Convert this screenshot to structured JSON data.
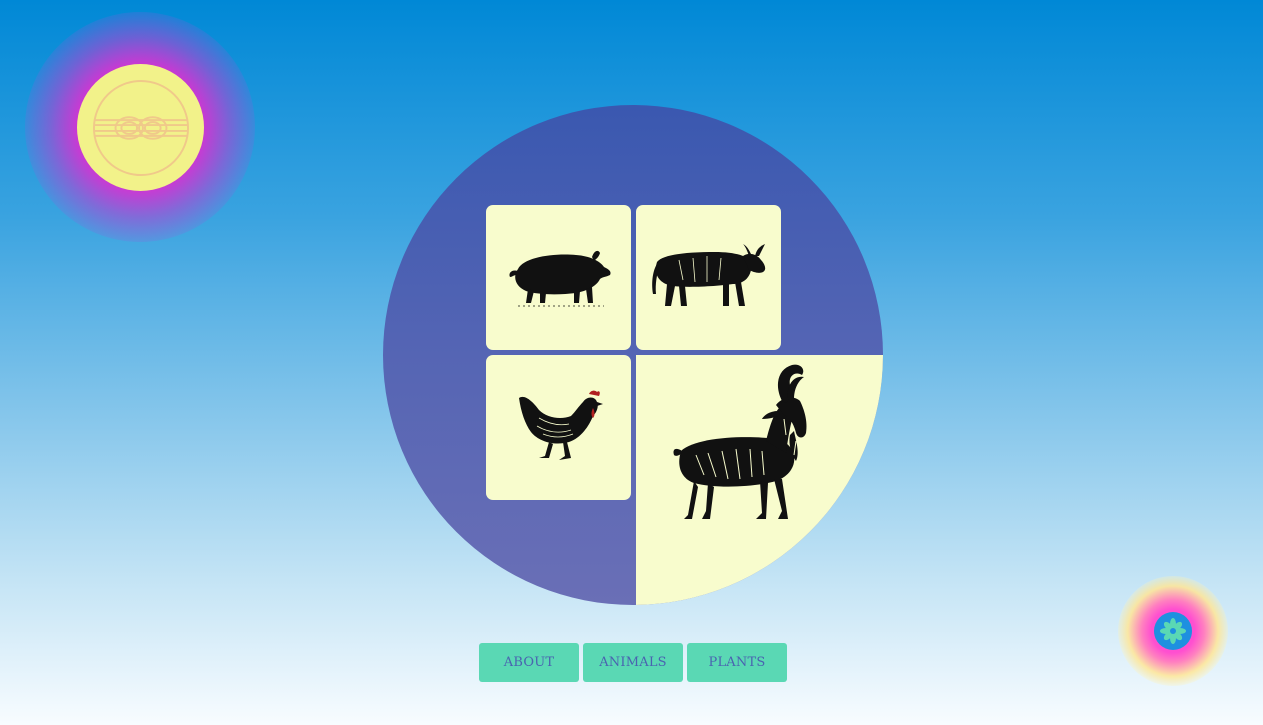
{
  "logo": {
    "icon": "knot-icon",
    "color": "#f2f28a",
    "glow": "#d632d2"
  },
  "badge": {
    "icon": "flower-icon",
    "color": "#1e90e0",
    "glow": "#ff4fd0"
  },
  "grid": {
    "tiles": [
      {
        "animal": "pig",
        "icon": "pig-icon"
      },
      {
        "animal": "cow",
        "icon": "cow-icon"
      },
      {
        "animal": "chicken",
        "icon": "chicken-icon"
      },
      {
        "animal": "goat",
        "icon": "goat-icon"
      }
    ],
    "tile_color": "#f8fccd",
    "disc_color": "#4a5fb3"
  },
  "nav": {
    "about_label": "ABOUT",
    "animals_label": "ANIMALS",
    "plants_label": "PLANTS",
    "button_color": "#5ad8b4",
    "text_color": "#4a63b0"
  }
}
